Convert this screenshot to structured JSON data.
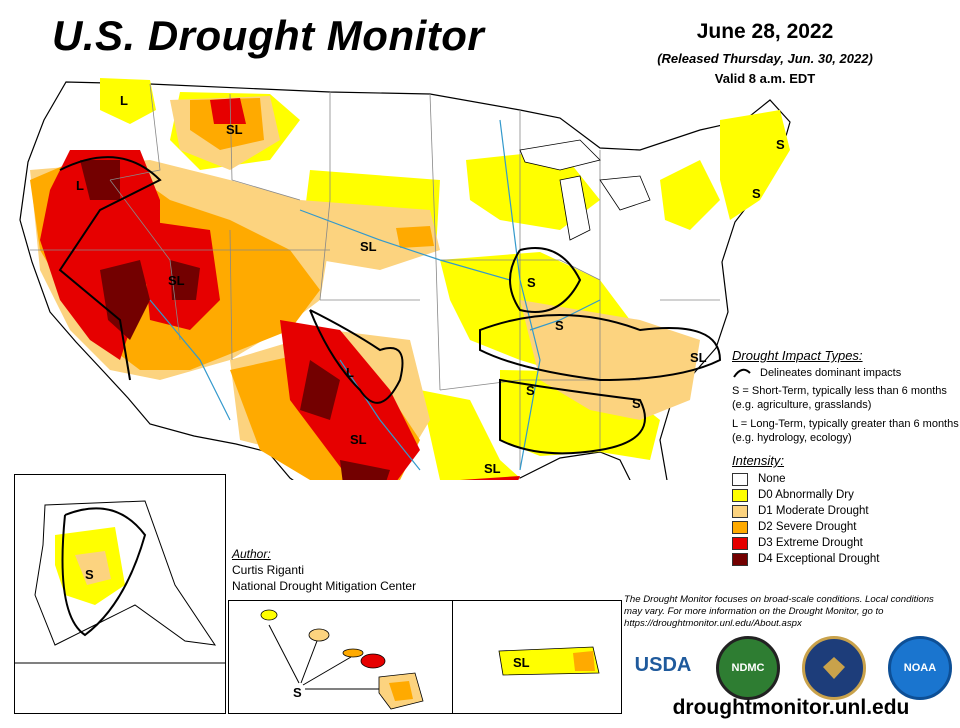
{
  "header": {
    "title": "U.S. Drought Monitor",
    "date": "June 28, 2022",
    "released": "(Released Thursday, Jun. 30, 2022)",
    "valid": "Valid 8 a.m. EDT"
  },
  "map_labels": {
    "pnw_l": "L",
    "mt_sl": "SL",
    "nw_l": "L",
    "sl_ut": "SL",
    "sl_ne": "SL",
    "s_mw": "S",
    "s_oh": "S",
    "s_ne1": "S",
    "s_ne2": "S",
    "sl_nc": "SL",
    "s_ms": "S",
    "s_ga": "S",
    "l_ok": "L",
    "sl_tx": "SL",
    "sl_gulf": "SL",
    "s_ak": "S",
    "s_hi": "S",
    "sl_pr": "SL"
  },
  "legend": {
    "impact_title": "Drought Impact Types:",
    "delineates": "Delineates dominant impacts",
    "s_text": "S = Short-Term, typically less than 6 months (e.g. agriculture, grasslands)",
    "l_text": "L = Long-Term, typically greater than 6 months (e.g. hydrology, ecology)",
    "intensity_title": "Intensity:",
    "items": [
      {
        "label": "None",
        "color": "#ffffff"
      },
      {
        "label": "D0 Abnormally Dry",
        "color": "#ffff00"
      },
      {
        "label": "D1 Moderate Drought",
        "color": "#fcd37f"
      },
      {
        "label": "D2 Severe Drought",
        "color": "#ffaa00"
      },
      {
        "label": "D3 Extreme Drought",
        "color": "#e60000"
      },
      {
        "label": "D4 Exceptional Drought",
        "color": "#730000"
      }
    ]
  },
  "author": {
    "heading": "Author:",
    "name": "Curtis Riganti",
    "org": "National Drought Mitigation Center"
  },
  "note": "The Drought Monitor focuses on broad-scale conditions. Local conditions may vary. For more information on the Drought Monitor, go to https://droughtmonitor.unl.edu/About.aspx",
  "logos": {
    "usda": "USDA",
    "ndmc": "NDMC",
    "noaa": "NOAA"
  },
  "url": "droughtmonitor.unl.edu"
}
